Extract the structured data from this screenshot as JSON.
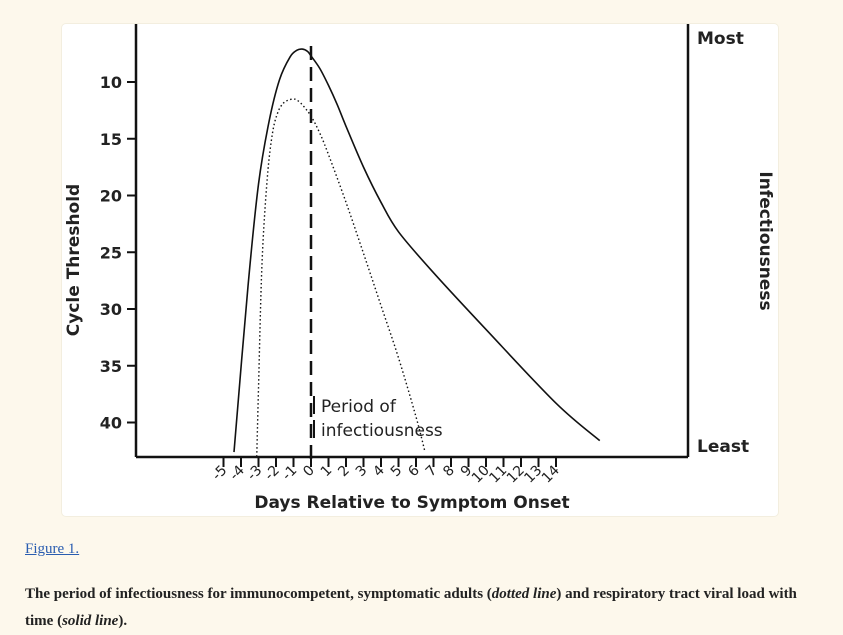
{
  "chart_data": {
    "type": "line",
    "xlabel": "Days Relative to Symptom Onset",
    "ylabel": "Cycle Threshold",
    "right_axis_label": "Infectiousness",
    "right_axis_top": "Most",
    "right_axis_bottom": "Least",
    "x_ticks": [
      "-5",
      "-4",
      "-3",
      "-2",
      "-1",
      "0",
      "1",
      "2",
      "3",
      "4",
      "5",
      "6",
      "7",
      "8",
      "9",
      "10",
      "11",
      "12",
      "13",
      "14"
    ],
    "y_ticks": [
      10,
      15,
      20,
      25,
      30,
      35,
      40
    ],
    "ylim": [
      43,
      6
    ],
    "annotation": [
      "Period of",
      "infectiousness"
    ],
    "series": [
      {
        "style": "solid",
        "x": [
          -4.4,
          -3.6,
          -3.0,
          -2.4,
          -1.8,
          -1.2,
          -0.8,
          -0.5,
          -0.2,
          0,
          0.5,
          1.0,
          1.5,
          2.0,
          3.0,
          4.0,
          5.0,
          7.0,
          10.0,
          14.0,
          16.5
        ],
        "y": [
          42.6,
          28.0,
          19.0,
          13.5,
          9.8,
          7.8,
          7.2,
          7.1,
          7.3,
          7.7,
          8.8,
          10.3,
          12.0,
          13.9,
          17.5,
          20.6,
          23.2,
          26.8,
          31.8,
          38.3,
          41.6
        ]
      },
      {
        "style": "dotted",
        "x": [
          -3.1,
          -3.0,
          -2.8,
          -2.5,
          -2.2,
          -1.9,
          -1.6,
          -1.3,
          -1.0,
          -0.8,
          -0.5,
          0,
          0.5,
          1.0,
          2.0,
          3.0,
          4.0,
          5.0,
          6.0,
          6.5
        ],
        "y": [
          43.0,
          37.0,
          26.0,
          18.5,
          14.5,
          12.7,
          11.9,
          11.6,
          11.5,
          11.6,
          12.0,
          13.0,
          14.5,
          16.4,
          20.6,
          25.1,
          29.7,
          34.3,
          39.5,
          42.5
        ]
      }
    ],
    "onset_day": 0
  },
  "figure_link": "Figure 1.",
  "caption": {
    "part1": "The period of infectiousness for immunocompetent, symptomatic adults (",
    "dotted_label": "dotted line",
    "part2": ") and respiratory tract viral load with time (",
    "solid_label": "solid line",
    "part3": ")."
  }
}
